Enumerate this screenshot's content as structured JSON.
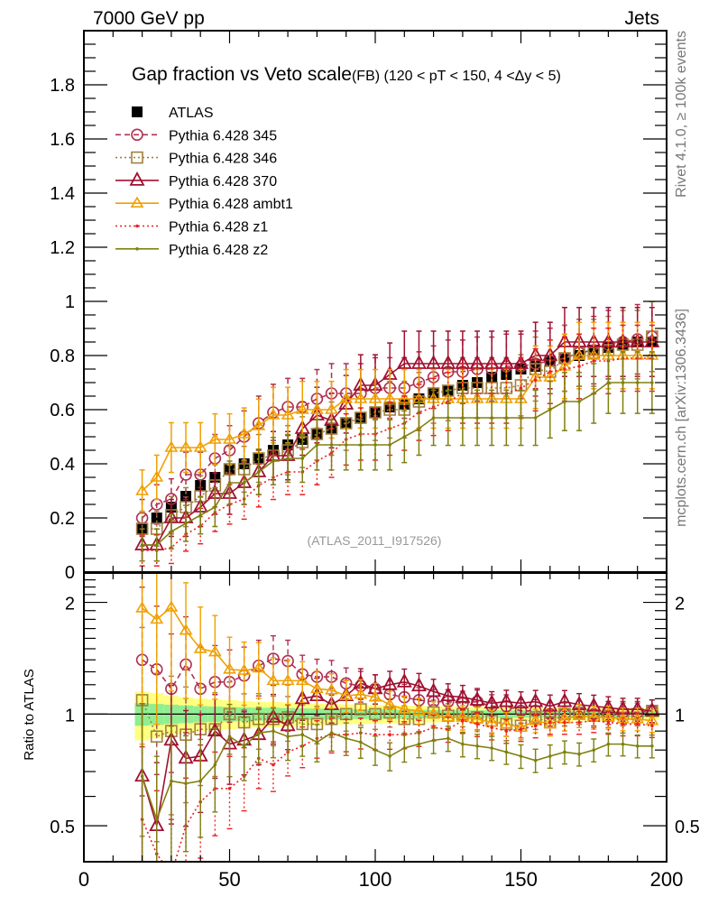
{
  "header": {
    "left": "7000 GeV pp",
    "right": "Jets"
  },
  "side_labels": {
    "rivet": "Rivet 4.1.0, ≥ 100k events",
    "mcplots": "mcplots.cern.ch [arXiv:1306.3436]"
  },
  "chart_data": [
    {
      "type": "line",
      "title": "Gap fraction vs Veto scale",
      "title_suffix": "(FB) (120 < pT < 150, 4 <Δy < 5)",
      "annotation": "(ATLAS_2011_I917526)",
      "xlabel": "",
      "ylabel": "",
      "xlim": [
        0,
        200
      ],
      "ylim": [
        0,
        2.0
      ],
      "yticks": [
        0,
        0.2,
        0.4,
        0.6,
        0.8,
        1,
        1.2,
        1.4,
        1.6,
        1.8
      ],
      "ytick_labels": [
        "0",
        "0.2",
        "0.4",
        "0.6",
        "0.8",
        "1",
        "1.2",
        "1.4",
        "1.6",
        "1.8"
      ],
      "legend_position": "top-left",
      "x": [
        20,
        25,
        30,
        35,
        40,
        45,
        50,
        55,
        60,
        65,
        70,
        75,
        80,
        85,
        90,
        95,
        100,
        105,
        110,
        115,
        120,
        125,
        130,
        135,
        140,
        145,
        150,
        155,
        160,
        165,
        170,
        175,
        180,
        185,
        190,
        195
      ],
      "series": [
        {
          "name": "ATLAS",
          "color": "#000000",
          "marker": "filled-square",
          "line": "none",
          "values": [
            0.16,
            0.2,
            0.24,
            0.28,
            0.32,
            0.35,
            0.38,
            0.4,
            0.42,
            0.45,
            0.47,
            0.49,
            0.51,
            0.53,
            0.55,
            0.57,
            0.59,
            0.61,
            0.62,
            0.64,
            0.66,
            0.67,
            0.69,
            0.7,
            0.72,
            0.73,
            0.75,
            0.76,
            0.78,
            0.79,
            0.8,
            0.82,
            0.83,
            0.84,
            0.85,
            0.85
          ]
        },
        {
          "name": "Pythia 6.428 345",
          "color": "#b03050",
          "marker": "open-circle",
          "line": "dashed",
          "values": [
            0.2,
            0.25,
            0.27,
            0.36,
            0.36,
            0.42,
            0.45,
            0.5,
            0.55,
            0.59,
            0.61,
            0.61,
            0.64,
            0.66,
            0.66,
            0.66,
            0.68,
            0.68,
            0.68,
            0.7,
            0.72,
            0.74,
            0.74,
            0.75,
            0.75,
            0.76,
            0.76,
            0.77,
            0.78,
            0.79,
            0.81,
            0.82,
            0.84,
            0.85,
            0.86,
            0.87
          ]
        },
        {
          "name": "Pythia 6.428 346",
          "color": "#a08040",
          "marker": "open-square",
          "line": "dotted",
          "values": [
            0.16,
            0.16,
            0.21,
            0.24,
            0.28,
            0.32,
            0.38,
            0.38,
            0.42,
            0.43,
            0.45,
            0.48,
            0.51,
            0.53,
            0.55,
            0.57,
            0.59,
            0.6,
            0.6,
            0.63,
            0.66,
            0.67,
            0.68,
            0.68,
            0.68,
            0.68,
            0.69,
            0.75,
            0.74,
            0.79,
            0.81,
            0.81,
            0.82,
            0.84,
            0.84,
            0.87
          ]
        },
        {
          "name": "Pythia 6.428 370",
          "color": "#a01030",
          "marker": "open-triangle",
          "line": "solid",
          "values": [
            0.1,
            0.1,
            0.2,
            0.2,
            0.24,
            0.29,
            0.29,
            0.33,
            0.37,
            0.43,
            0.43,
            0.53,
            0.58,
            0.56,
            0.62,
            0.69,
            0.69,
            0.73,
            0.77,
            0.77,
            0.77,
            0.77,
            0.77,
            0.77,
            0.77,
            0.77,
            0.77,
            0.8,
            0.8,
            0.85,
            0.85,
            0.85,
            0.85,
            0.85,
            0.85,
            0.85
          ]
        },
        {
          "name": "Pythia 6.428 ambt1",
          "color": "#f0a000",
          "marker": "open-triangle",
          "line": "solid",
          "values": [
            0.3,
            0.35,
            0.46,
            0.46,
            0.46,
            0.49,
            0.49,
            0.51,
            0.54,
            0.58,
            0.58,
            0.6,
            0.6,
            0.6,
            0.64,
            0.64,
            0.64,
            0.64,
            0.64,
            0.64,
            0.64,
            0.64,
            0.64,
            0.64,
            0.64,
            0.64,
            0.64,
            0.72,
            0.72,
            0.76,
            0.8,
            0.8,
            0.8,
            0.8,
            0.8,
            0.8
          ]
        },
        {
          "name": "Pythia 6.428 z1",
          "color": "#ee2020",
          "marker": "dot",
          "line": "dotted",
          "values": [
            0.08,
            0.08,
            0.09,
            0.14,
            0.17,
            0.22,
            0.25,
            0.27,
            0.32,
            0.35,
            0.37,
            0.37,
            0.41,
            0.44,
            0.49,
            0.51,
            0.51,
            0.53,
            0.55,
            0.59,
            0.61,
            0.63,
            0.66,
            0.66,
            0.66,
            0.66,
            0.68,
            0.71,
            0.74,
            0.75,
            0.76,
            0.78,
            0.78,
            0.79,
            0.79,
            0.79
          ]
        },
        {
          "name": "Pythia 6.428 z2",
          "color": "#808010",
          "marker": "dot",
          "line": "solid",
          "values": [
            0.1,
            0.1,
            0.15,
            0.18,
            0.21,
            0.24,
            0.33,
            0.33,
            0.37,
            0.41,
            0.42,
            0.42,
            0.47,
            0.47,
            0.47,
            0.47,
            0.47,
            0.47,
            0.5,
            0.53,
            0.57,
            0.57,
            0.57,
            0.57,
            0.57,
            0.57,
            0.57,
            0.57,
            0.6,
            0.63,
            0.63,
            0.66,
            0.7,
            0.7,
            0.7,
            0.7
          ]
        }
      ]
    },
    {
      "type": "line",
      "title": "",
      "xlabel": "",
      "ylabel": "Ratio to ATLAS",
      "yscale": "log",
      "xlim": [
        0,
        200
      ],
      "ylim": [
        0.4,
        2.4
      ],
      "xticks": [
        0,
        50,
        100,
        150,
        200
      ],
      "xtick_labels": [
        "0",
        "50",
        "100",
        "150",
        "200"
      ],
      "yticks": [
        0.5,
        1,
        2
      ],
      "ytick_labels": [
        "0.5",
        "1",
        "2"
      ],
      "reference_line": 1,
      "x": [
        20,
        25,
        30,
        35,
        40,
        45,
        50,
        55,
        60,
        65,
        70,
        75,
        80,
        85,
        90,
        95,
        100,
        105,
        110,
        115,
        120,
        125,
        130,
        135,
        140,
        145,
        150,
        155,
        160,
        165,
        170,
        175,
        180,
        185,
        190,
        195
      ],
      "band_inner": {
        "color": "#90ee90",
        "halfwidth": [
          0.07,
          0.065,
          0.06,
          0.055,
          0.05,
          0.048,
          0.045,
          0.043,
          0.04,
          0.04,
          0.038,
          0.036,
          0.035,
          0.034,
          0.032,
          0.03,
          0.03,
          0.029,
          0.028,
          0.027,
          0.026,
          0.025,
          0.025,
          0.024,
          0.023,
          0.023,
          0.022,
          0.022,
          0.021,
          0.021,
          0.02,
          0.02,
          0.02,
          0.019,
          0.019,
          0.019
        ]
      },
      "band_outer": {
        "color": "#ffff80",
        "halfwidth": [
          0.15,
          0.14,
          0.12,
          0.11,
          0.1,
          0.095,
          0.09,
          0.085,
          0.08,
          0.078,
          0.075,
          0.07,
          0.068,
          0.065,
          0.062,
          0.06,
          0.058,
          0.056,
          0.054,
          0.052,
          0.05,
          0.049,
          0.048,
          0.047,
          0.046,
          0.045,
          0.044,
          0.043,
          0.042,
          0.041,
          0.04,
          0.04,
          0.039,
          0.038,
          0.038,
          0.037
        ]
      },
      "series": [
        {
          "name": "Pythia 6.428 345",
          "values": [
            1.4,
            1.32,
            1.17,
            1.36,
            1.17,
            1.22,
            1.22,
            1.27,
            1.35,
            1.41,
            1.39,
            1.28,
            1.26,
            1.26,
            1.21,
            1.19,
            1.17,
            1.13,
            1.11,
            1.09,
            1.08,
            1.08,
            1.07,
            1.08,
            1.05,
            1.05,
            1.02,
            1.02,
            1.0,
            1.0,
            1.01,
            1.0,
            1.01,
            1.01,
            1.01,
            1.02
          ]
        },
        {
          "name": "Pythia 6.428 346",
          "values": [
            1.09,
            0.87,
            0.9,
            0.88,
            0.91,
            0.91,
            1.0,
            0.95,
            0.97,
            0.97,
            0.98,
            0.94,
            0.94,
            0.97,
            1.0,
            1.03,
            1.0,
            1.01,
            0.97,
            0.97,
            1.01,
            0.99,
            1.0,
            0.98,
            0.96,
            0.94,
            0.93,
            0.98,
            0.95,
            1.0,
            1.01,
            0.99,
            0.99,
            1.0,
            1.0,
            1.02
          ]
        },
        {
          "name": "Pythia 6.428 370",
          "values": [
            0.68,
            0.5,
            0.85,
            0.76,
            0.77,
            0.9,
            0.83,
            0.85,
            0.88,
            0.98,
            0.93,
            1.1,
            1.12,
            1.06,
            1.12,
            1.21,
            1.17,
            1.2,
            1.22,
            1.19,
            1.15,
            1.12,
            1.11,
            1.09,
            1.07,
            1.08,
            1.07,
            1.08,
            1.05,
            1.08,
            1.06,
            1.05,
            1.04,
            1.03,
            1.03,
            1.02
          ]
        },
        {
          "name": "Pythia 6.428 ambt1",
          "values": [
            1.93,
            1.8,
            1.94,
            1.68,
            1.5,
            1.47,
            1.32,
            1.31,
            1.33,
            1.23,
            1.23,
            1.23,
            1.17,
            1.16,
            1.12,
            1.13,
            1.11,
            1.06,
            1.03,
            1.02,
            1.0,
            0.98,
            0.98,
            0.97,
            0.95,
            0.94,
            0.92,
            0.96,
            0.94,
            0.97,
            0.99,
            0.98,
            0.98,
            0.97,
            0.97,
            0.96
          ]
        },
        {
          "name": "Pythia 6.428 z1",
          "values": [
            0.52,
            0.42,
            0.37,
            0.5,
            0.58,
            0.63,
            0.63,
            0.68,
            0.76,
            0.73,
            0.79,
            0.82,
            0.86,
            0.88,
            0.88,
            0.89,
            0.88,
            0.88,
            0.88,
            0.89,
            0.92,
            0.91,
            0.96,
            0.94,
            0.92,
            0.9,
            0.91,
            0.93,
            0.95,
            0.95,
            0.95,
            0.96,
            0.95,
            0.94,
            0.94,
            0.93
          ]
        },
        {
          "name": "Pythia 6.428 z2",
          "values": [
            0.68,
            0.52,
            0.66,
            0.65,
            0.66,
            0.73,
            0.87,
            0.82,
            0.89,
            0.9,
            0.87,
            0.88,
            0.84,
            0.89,
            0.86,
            0.84,
            0.8,
            0.77,
            0.81,
            0.83,
            0.85,
            0.86,
            0.83,
            0.82,
            0.81,
            0.79,
            0.77,
            0.75,
            0.77,
            0.79,
            0.78,
            0.8,
            0.83,
            0.83,
            0.82,
            0.82
          ]
        }
      ]
    }
  ]
}
